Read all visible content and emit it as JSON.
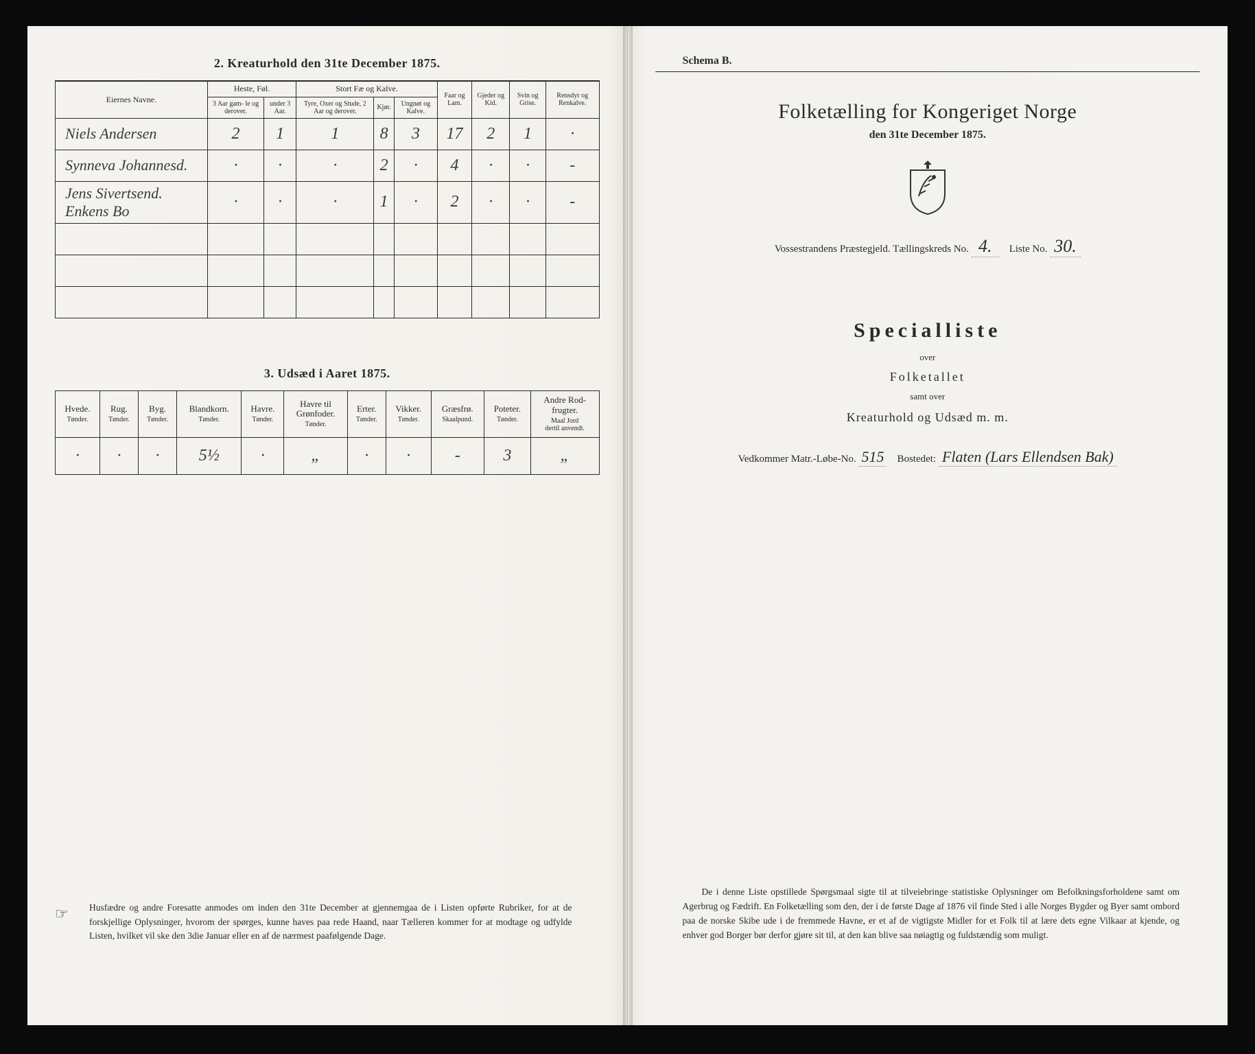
{
  "left": {
    "section2_title": "2.  Kreaturhold den 31te December 1875.",
    "t2": {
      "head": {
        "eier": "Eiernes Navne.",
        "heste": "Heste, Føl.",
        "heste_a": "3 Aar gam-\nle og derover.",
        "heste_b": "under 3 Aar.",
        "stort": "Stort Fæ og Kalve.",
        "stort_a": "Tyre, Oxer og\nStude, 2 Aar\nog derover.",
        "stort_b": "Kjør.",
        "stort_c": "Ungnøt og\nKalve.",
        "faar": "Faar og\nLam.",
        "gjed": "Gjeder og\nKid.",
        "svin": "Svin og\nGrise.",
        "rens": "Rensdyr\nog\nRenkalve."
      },
      "rows": [
        {
          "name": "Niels Andersen",
          "c": [
            "2",
            "1",
            "1",
            "8",
            "3",
            "17",
            "2",
            "1",
            "·"
          ]
        },
        {
          "name": "Synneva Johannesd.",
          "c": [
            "·",
            "·",
            "·",
            "2",
            "·",
            "4",
            "·",
            "·",
            "-"
          ]
        },
        {
          "name": "Jens Sivertsend.\nEnkens Bo",
          "c": [
            "·",
            "·",
            "·",
            "1",
            "·",
            "2",
            "·",
            "·",
            "-"
          ]
        }
      ]
    },
    "section3_title": "3.  Udsæd i Aaret 1875.",
    "t3": {
      "head": [
        {
          "l": "Hvede.",
          "u": "Tønder."
        },
        {
          "l": "Rug.",
          "u": "Tønder."
        },
        {
          "l": "Byg.",
          "u": "Tønder."
        },
        {
          "l": "Blandkorn.",
          "u": "Tønder."
        },
        {
          "l": "Havre.",
          "u": "Tønder."
        },
        {
          "l": "Havre til\nGrønfoder.",
          "u": "Tønder."
        },
        {
          "l": "Erter.",
          "u": "Tønder."
        },
        {
          "l": "Vikker.",
          "u": "Tønder."
        },
        {
          "l": "Græsfrø.",
          "u": "Skaalpund."
        },
        {
          "l": "Poteter.",
          "u": "Tønder."
        },
        {
          "l": "Andre Rod-\nfrugter.",
          "u": "Maal Jord\ndertil anvendt."
        }
      ],
      "row": [
        "·",
        "·",
        "·",
        "5½",
        "·",
        "„",
        "·",
        "·",
        "-",
        "3",
        "„"
      ]
    },
    "footnote": "Husfædre og andre Foresatte anmodes om inden den 31te December at gjennemgaa de i Listen opførte Rubriker, for at de forskjellige Oplysninger, hvorom der spørges, kunne haves paa rede Haand, naar Tælleren kommer for at modtage og udfylde Listen, hvilket vil ske den 3die Januar eller en af de nærmest paafølgende Dage."
  },
  "right": {
    "schema": "Schema B.",
    "title": "Folketælling for Kongeriget Norge",
    "subtitle": "den 31te December 1875.",
    "ident_prefix": "Vossestrandens Præstegjeld.  Tællingskreds No.",
    "kreds_no": "4.",
    "liste_label": "Liste No.",
    "liste_no": "30.",
    "special": "Specialliste",
    "over": "over",
    "folketallet": "Folketallet",
    "samt": "samt over",
    "krea": "Kreaturhold og Udsæd m. m.",
    "matr_prefix": "Vedkommer Matr.-Løbe-No.",
    "matr_no": "515",
    "bosted_label": "Bostedet:",
    "bosted": "Flaten (Lars Ellendsen Bak)",
    "footnote": "De i denne Liste opstillede Spørgsmaal sigte til at tilveiebringe statistiske Oplysninger om Befolkningsforholdene samt om Agerbrug og Fædrift.  En Folketælling som den, der i de første Dage af 1876 vil finde Sted i alle Norges Bygder og Byer samt ombord paa de norske Skibe ude i de fremmede Havne, er et af de vigtigste Midler for et Folk til at lære dets egne Vilkaar at kjende, og enhver god Borger bør derfor gjøre sit til, at den kan blive saa nøiagtig og fuldstændig som muligt."
  }
}
